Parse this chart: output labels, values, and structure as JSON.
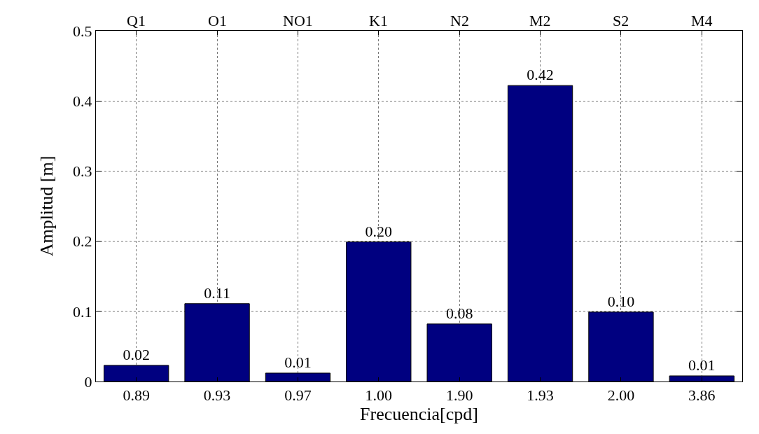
{
  "chart_data": {
    "type": "bar",
    "xlabel": "Frecuencia[cpd]",
    "ylabel": "Amplitud [m]",
    "categories": [
      "0.89",
      "0.93",
      "0.97",
      "1.00",
      "1.90",
      "1.93",
      "2.00",
      "3.86"
    ],
    "values": [
      0.023,
      0.111,
      0.012,
      0.199,
      0.082,
      0.422,
      0.099,
      0.008
    ],
    "value_labels": [
      "0.02",
      "0.11",
      "0.01",
      "0.20",
      "0.08",
      "0.42",
      "0.10",
      "0.01"
    ],
    "color": "#000080",
    "ylim": [
      0,
      0.5
    ],
    "yticks": [
      0,
      0.1,
      0.2,
      0.3,
      0.4,
      0.5
    ],
    "grid": true,
    "line_style": "dotted",
    "annotations": [
      {
        "text": "Q1",
        "x": "0.89"
      },
      {
        "text": "O1",
        "x": "0.93"
      },
      {
        "text": "NO1",
        "x": "0.97"
      },
      {
        "text": "K1",
        "x": "1.00"
      },
      {
        "text": "N2",
        "x": "1.90"
      },
      {
        "text": "M2",
        "x": "1.93"
      },
      {
        "text": "S2",
        "x": "2.00"
      },
      {
        "text": "M4",
        "x": "3.86"
      }
    ]
  }
}
